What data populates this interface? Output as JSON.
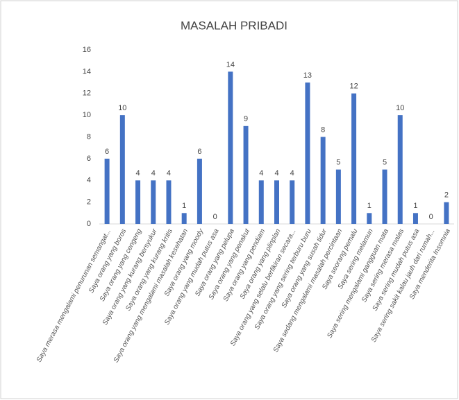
{
  "chart_data": {
    "type": "bar",
    "title": "MASALAH PRIBADI",
    "categories": [
      "Saya merasa mengalami penurunan semangat...",
      "Saya orang yang boros",
      "Saya orang yang cengeng",
      "Saya orang yang kurang bersyukur",
      "Saya orang yang kurang kritis",
      "Saya orang yang mengalami masalah kesehatan",
      "Saya orang yang moody",
      "Saya orang yang mudah putus asa",
      "Saya orang yang pelupa",
      "Saya orang yang penakut",
      "Saya orang yang pendiam",
      "Saya orang yang plinplan",
      "Saya orang yang selalu berfikiran secara...",
      "Saya orang yang sering terburu buru",
      "Saya orang yang susah tidur",
      "Saya sedang mengalami masalah percintaan",
      "Saya seorang pemalu",
      "Saya sering melamun",
      "Saya sering mengalami gangguan mata",
      "Saya sering merasa malas",
      "Saya sering mudah putus asa",
      "Saya sering sakit kalau jauh dari rumah...",
      "Saya menderita Insomnia"
    ],
    "values": [
      6,
      10,
      4,
      4,
      4,
      1,
      6,
      0,
      14,
      9,
      4,
      4,
      4,
      13,
      8,
      5,
      12,
      1,
      5,
      10,
      1,
      0,
      2
    ],
    "color": "#4472c4",
    "ylim": [
      0,
      16
    ],
    "yticks": [
      0,
      2,
      4,
      6,
      8,
      10,
      12,
      14,
      16
    ],
    "grid": false
  }
}
